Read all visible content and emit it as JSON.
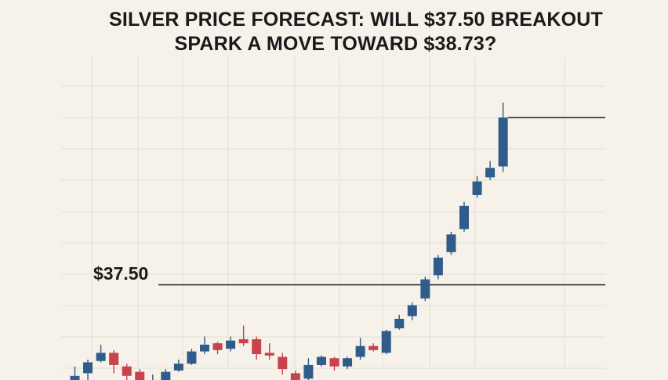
{
  "chart_data": {
    "type": "candlestick",
    "title_lines": [
      "SILVER PRICE FORECAST: WILL $37.50 BREAKOUT",
      "SPARK A MOVE TOWARD $38.73?"
    ],
    "xlabel": "",
    "ylabel": "",
    "ylim": [
      36.6,
      39.3
    ],
    "grid": true,
    "colors": {
      "up": "#2f5c8a",
      "down": "#c8434d",
      "grid": "#e4ddd2",
      "level_line": "#1a1a1a",
      "background": "#f6f2ea"
    },
    "levels": [
      {
        "label": "$37.50",
        "value": 37.5
      },
      {
        "label": "",
        "value": 38.73
      }
    ],
    "candles": [
      {
        "open": 36.77,
        "close": 36.83,
        "high": 36.9,
        "low": 36.74
      },
      {
        "open": 36.85,
        "close": 36.93,
        "high": 36.95,
        "low": 36.78
      },
      {
        "open": 36.94,
        "close": 37.0,
        "high": 37.06,
        "low": 36.93
      },
      {
        "open": 37.0,
        "close": 36.91,
        "high": 37.02,
        "low": 36.85
      },
      {
        "open": 36.9,
        "close": 36.83,
        "high": 36.92,
        "low": 36.8
      },
      {
        "open": 36.86,
        "close": 36.77,
        "high": 36.88,
        "low": 36.73
      },
      {
        "open": 36.77,
        "close": 36.8,
        "high": 36.84,
        "low": 36.7
      },
      {
        "open": 36.79,
        "close": 36.86,
        "high": 36.88,
        "low": 36.75
      },
      {
        "open": 36.87,
        "close": 36.92,
        "high": 36.95,
        "low": 36.86
      },
      {
        "open": 36.92,
        "close": 37.01,
        "high": 37.03,
        "low": 36.91
      },
      {
        "open": 37.01,
        "close": 37.06,
        "high": 37.12,
        "low": 36.99
      },
      {
        "open": 37.07,
        "close": 37.02,
        "high": 37.08,
        "low": 36.99
      },
      {
        "open": 37.03,
        "close": 37.09,
        "high": 37.12,
        "low": 37.01
      },
      {
        "open": 37.1,
        "close": 37.07,
        "high": 37.2,
        "low": 37.05
      },
      {
        "open": 37.1,
        "close": 36.99,
        "high": 37.12,
        "low": 36.95
      },
      {
        "open": 37.0,
        "close": 36.98,
        "high": 37.07,
        "low": 36.95
      },
      {
        "open": 36.97,
        "close": 36.88,
        "high": 37.0,
        "low": 36.84
      },
      {
        "open": 36.85,
        "close": 36.8,
        "high": 36.87,
        "low": 36.73
      },
      {
        "open": 36.81,
        "close": 36.91,
        "high": 36.96,
        "low": 36.8
      },
      {
        "open": 36.91,
        "close": 36.97,
        "high": 36.98,
        "low": 36.9
      },
      {
        "open": 36.96,
        "close": 36.9,
        "high": 36.97,
        "low": 36.87
      },
      {
        "open": 36.9,
        "close": 36.96,
        "high": 36.97,
        "low": 36.88
      },
      {
        "open": 36.97,
        "close": 37.05,
        "high": 37.11,
        "low": 36.95
      },
      {
        "open": 37.05,
        "close": 37.02,
        "high": 37.07,
        "low": 37.01
      },
      {
        "open": 37.0,
        "close": 37.16,
        "high": 37.17,
        "low": 36.99
      },
      {
        "open": 37.18,
        "close": 37.25,
        "high": 37.28,
        "low": 37.17
      },
      {
        "open": 37.27,
        "close": 37.35,
        "high": 37.37,
        "low": 37.24
      },
      {
        "open": 37.4,
        "close": 37.54,
        "high": 37.56,
        "low": 37.38
      },
      {
        "open": 37.57,
        "close": 37.7,
        "high": 37.72,
        "low": 37.54
      },
      {
        "open": 37.74,
        "close": 37.87,
        "high": 37.89,
        "low": 37.72
      },
      {
        "open": 37.91,
        "close": 38.08,
        "high": 38.11,
        "low": 37.89
      },
      {
        "open": 38.16,
        "close": 38.26,
        "high": 38.3,
        "low": 38.14
      },
      {
        "open": 38.29,
        "close": 38.36,
        "high": 38.41,
        "low": 38.27
      },
      {
        "open": 38.37,
        "close": 38.73,
        "high": 38.84,
        "low": 38.33
      }
    ]
  }
}
